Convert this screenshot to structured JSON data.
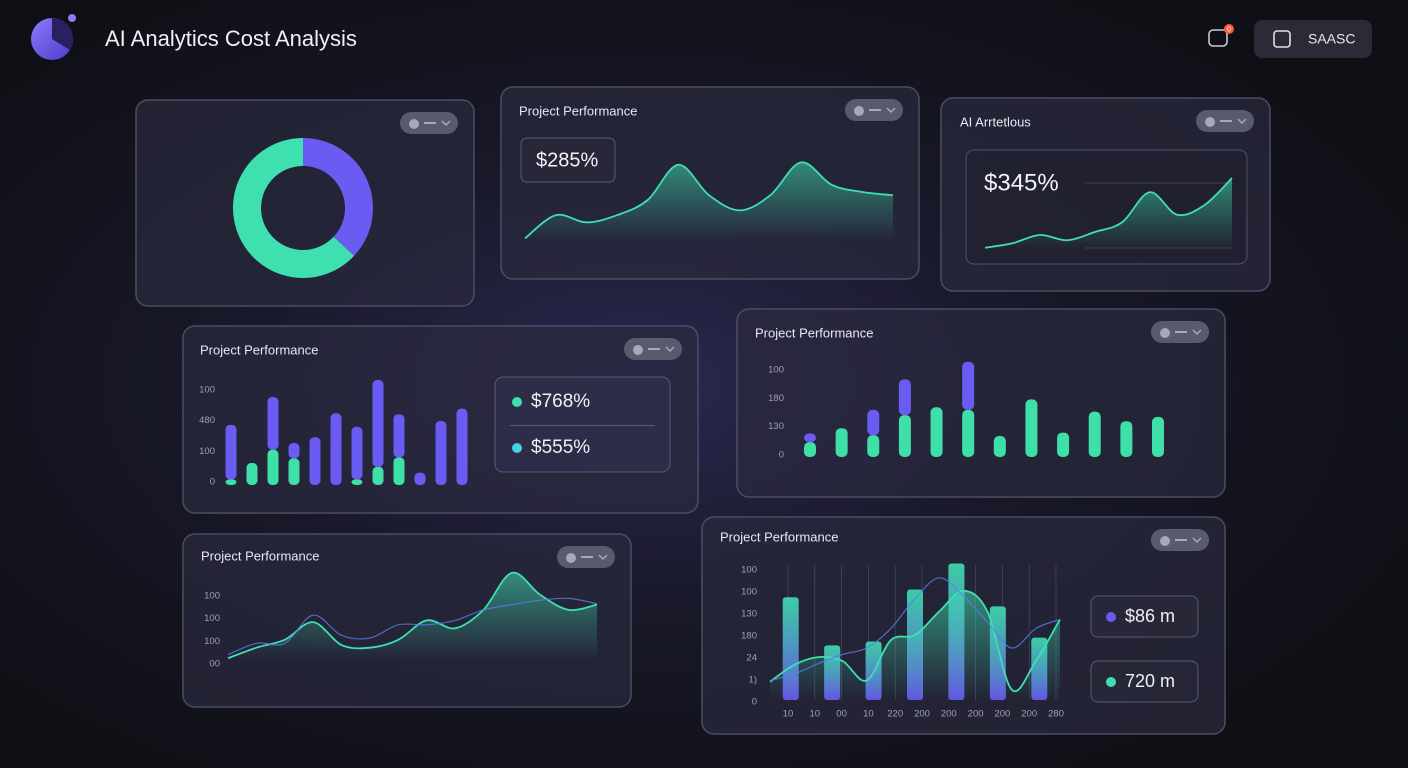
{
  "header": {
    "title": "AI Analytics Cost Analysis",
    "notification_count": "0",
    "button": "SAASC"
  },
  "chart_data": [
    {
      "type": "donut",
      "values": [
        37,
        63
      ],
      "colors": [
        "#6a5cf2",
        "#3fe0b0"
      ]
    },
    {
      "type": "line",
      "title": "Project Performance",
      "annotation": "$285%",
      "ylim": [
        0,
        100
      ],
      "series": [
        {
          "color": "#3ee0b0",
          "values": [
            2,
            31,
            22,
            31,
            50,
            94,
            56,
            37,
            56,
            97,
            69,
            60,
            56
          ]
        }
      ]
    },
    {
      "type": "line",
      "title": "AI Arrtetlous",
      "annotation": "$345%",
      "ylim": [
        0,
        100
      ],
      "series": [
        {
          "color": "#3ee0b0",
          "values": [
            3,
            9,
            20,
            13,
            24,
            37,
            77,
            47,
            60,
            96
          ]
        }
      ]
    },
    {
      "type": "bar",
      "title": "Project Performance",
      "y_labels": [
        "100",
        "480",
        "100",
        "0"
      ],
      "ylim": [
        0,
        110
      ],
      "series": [
        {
          "color": "#3ee0a8",
          "values": [
            6,
            23,
            37,
            28,
            0,
            0,
            6,
            19,
            29,
            0,
            0,
            0
          ]
        },
        {
          "color": "#6a5cf2",
          "values": [
            57,
            0,
            55,
            16,
            50,
            75,
            55,
            91,
            45,
            13,
            67,
            80
          ]
        }
      ],
      "legend": [
        {
          "label": "$768%",
          "color": "#3ee0a8"
        },
        {
          "label": "$555%",
          "color": "#41d6e0"
        }
      ]
    },
    {
      "type": "bar",
      "title": "Project Performance",
      "y_labels": [
        "100",
        "180",
        "130",
        "0"
      ],
      "ylim": [
        0,
        110
      ],
      "series": [
        {
          "color": "#3ee0a8",
          "values": [
            17,
            33,
            25,
            48,
            57,
            54,
            24,
            66,
            28,
            52,
            41,
            46
          ]
        },
        {
          "color": "#6a5cf2",
          "values": [
            10,
            0,
            29,
            41,
            0,
            55,
            0,
            0,
            0,
            0,
            0,
            0
          ]
        }
      ]
    },
    {
      "type": "line",
      "title": "Project Performance",
      "y_labels": [
        "100",
        "100",
        "100",
        "00"
      ],
      "ylim": [
        0,
        100
      ],
      "series": [
        {
          "color": "#3ee0b0",
          "values": [
            2,
            14,
            23,
            43,
            17,
            14,
            23,
            45,
            36,
            57,
            99,
            74,
            57,
            63
          ]
        },
        {
          "color": "#5a7cf0",
          "values": [
            6,
            19,
            19,
            51,
            28,
            25,
            40,
            40,
            45,
            57,
            63,
            68,
            70,
            64
          ]
        }
      ]
    },
    {
      "type": "combo",
      "title": "Project Performance",
      "y_labels": [
        "100",
        "100",
        "130",
        "180",
        "24",
        "1)",
        "0"
      ],
      "x_labels": [
        "10",
        "10",
        "00",
        "10",
        "220",
        "200",
        "200",
        "200",
        "200",
        "200",
        "280"
      ],
      "ylim": [
        0,
        110
      ],
      "bars": {
        "color": "#3ee0b0",
        "values": [
          79,
          42,
          45,
          85,
          105,
          72,
          48
        ]
      },
      "series": [
        {
          "color": "#3ee0b0",
          "values": [
            14,
            27,
            33,
            30,
            15,
            46,
            50,
            68,
            84,
            68,
            8,
            30,
            62
          ]
        },
        {
          "color": "#5a7cf0",
          "values": [
            15,
            20,
            28,
            35,
            40,
            55,
            78,
            94,
            80,
            60,
            40,
            55,
            62
          ]
        }
      ],
      "legend": [
        {
          "label": "$86 m",
          "color": "#6a5cf2"
        },
        {
          "label": "720 m",
          "color": "#3ee0b0"
        }
      ]
    }
  ]
}
